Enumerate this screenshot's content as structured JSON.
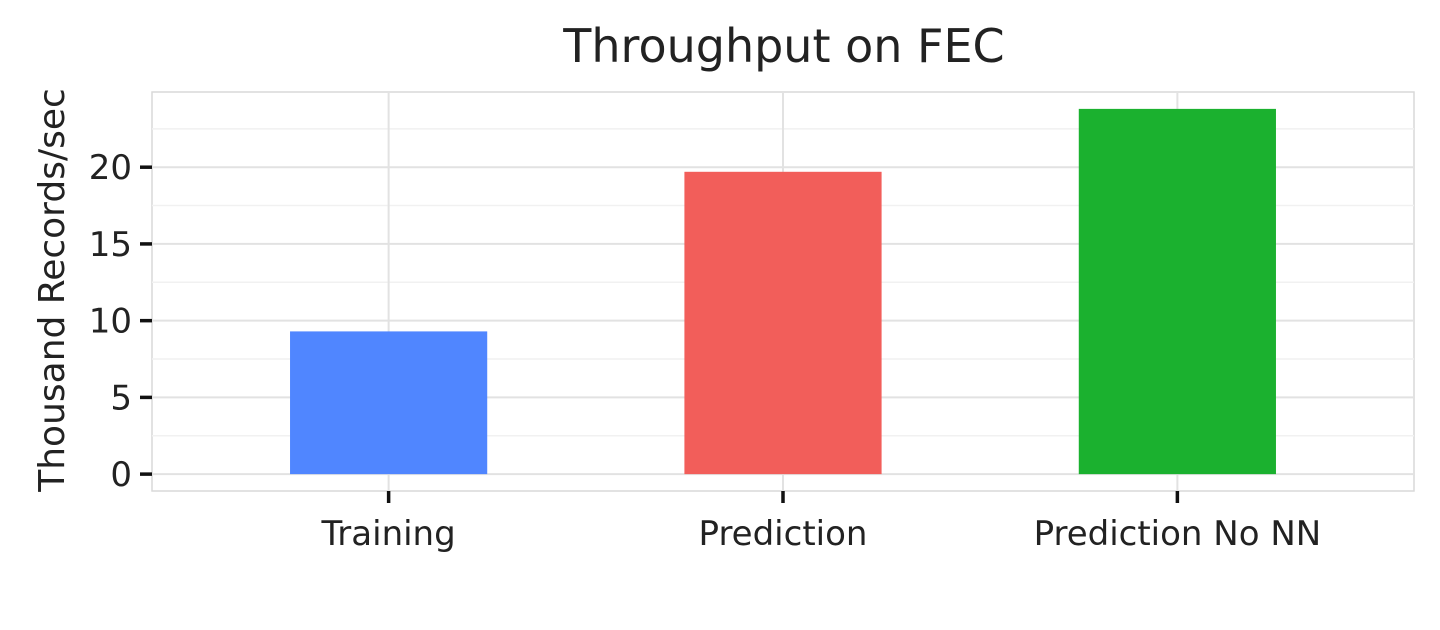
{
  "chart_data": {
    "type": "bar",
    "title": "Throughput on FEC",
    "xlabel": "",
    "ylabel": "Thousand Records/sec",
    "categories": [
      "Training",
      "Prediction",
      "Prediction No NN"
    ],
    "values": [
      9.3,
      19.7,
      23.8
    ],
    "colors": [
      "#5086ff",
      "#f25e5a",
      "#1bb12f"
    ],
    "ylim": [
      -1.1,
      24.9
    ],
    "yticks": [
      0,
      5,
      10,
      15,
      20
    ],
    "grid": true,
    "legend": "none"
  }
}
